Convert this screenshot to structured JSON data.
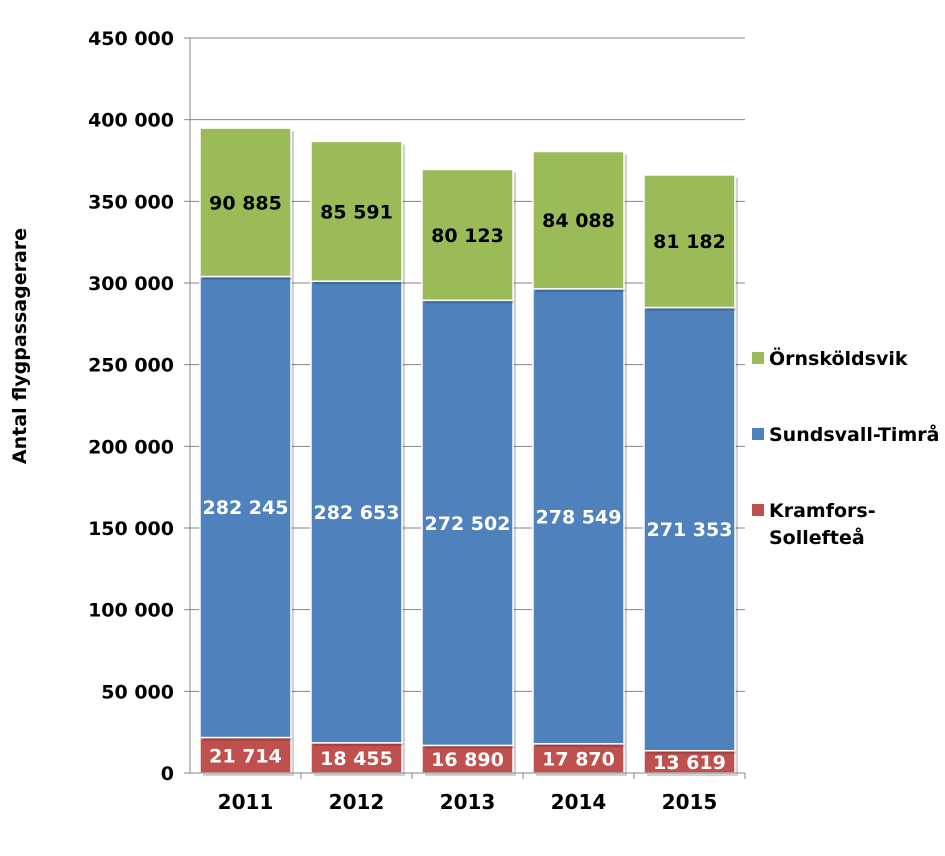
{
  "chart_data": {
    "type": "bar",
    "stacked": true,
    "title": "",
    "xlabel": "",
    "ylabel": "Antal flygpassagerare",
    "categories": [
      "2011",
      "2012",
      "2013",
      "2014",
      "2015"
    ],
    "ylim": [
      0,
      450000
    ],
    "yticks": [
      0,
      50000,
      100000,
      150000,
      200000,
      250000,
      300000,
      350000,
      400000,
      450000
    ],
    "ytick_labels": [
      "0",
      "50 000",
      "100 000",
      "150 000",
      "200 000",
      "250 000",
      "300 000",
      "350 000",
      "400 000",
      "450 000"
    ],
    "grid": true,
    "legend_position": "right",
    "series": [
      {
        "name": "Kramfors-Sollefteå",
        "legend_lines": [
          "Kramfors-",
          "Sollefteå"
        ],
        "color": "#C0504D",
        "label_color": "#ffffff",
        "values": [
          21714,
          18455,
          16890,
          17870,
          13619
        ],
        "labels": [
          "21 714",
          "18 455",
          "16 890",
          "17 870",
          "13 619"
        ]
      },
      {
        "name": "Sundsvall-Timrå",
        "legend_lines": [
          "Sundsvall-Timrå"
        ],
        "color": "#4F81BD",
        "label_color": "#ffffff",
        "values": [
          282245,
          282653,
          272502,
          278549,
          271353
        ],
        "labels": [
          "282 245",
          "282 653",
          "272 502",
          "278 549",
          "271 353"
        ]
      },
      {
        "name": "Örnsköldsvik",
        "legend_lines": [
          "Örnsköldsvik"
        ],
        "color": "#9BBB59",
        "label_color": "#000000",
        "values": [
          90885,
          85591,
          80123,
          84088,
          81182
        ],
        "labels": [
          "90 885",
          "85 591",
          "80 123",
          "84 088",
          "81 182"
        ]
      }
    ]
  }
}
